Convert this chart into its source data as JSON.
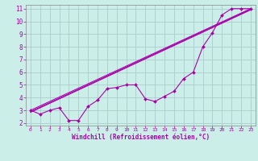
{
  "title": "",
  "xlabel": "Windchill (Refroidissement éolien,°C)",
  "bg_color": "#cceee8",
  "grid_color": "#aacccc",
  "line_color": "#aa00aa",
  "xlim": [
    -0.5,
    23.5
  ],
  "ylim": [
    1.8,
    11.3
  ],
  "xticks": [
    0,
    1,
    2,
    3,
    4,
    5,
    6,
    7,
    8,
    9,
    10,
    11,
    12,
    13,
    14,
    15,
    16,
    17,
    18,
    19,
    20,
    21,
    22,
    23
  ],
  "yticks": [
    2,
    3,
    4,
    5,
    6,
    7,
    8,
    9,
    10,
    11
  ],
  "line1_x": [
    0,
    1,
    2,
    3,
    4,
    5,
    6,
    7,
    8,
    9,
    10,
    11,
    12,
    13,
    14,
    15,
    16,
    17,
    18,
    19,
    20,
    21,
    22,
    23
  ],
  "line1_y": [
    3.0,
    2.7,
    3.0,
    3.2,
    2.2,
    2.2,
    3.3,
    3.8,
    4.7,
    4.8,
    5.0,
    5.0,
    3.9,
    3.7,
    4.1,
    4.5,
    5.5,
    6.0,
    8.0,
    9.1,
    10.5,
    11.0,
    11.0,
    11.0
  ],
  "line2_x": [
    0,
    23
  ],
  "line2_y": [
    3.0,
    11.0
  ],
  "line3_x": [
    0,
    23
  ],
  "line3_y": [
    2.9,
    10.95
  ],
  "line4_x": [
    0,
    23
  ],
  "line4_y": [
    2.85,
    10.9
  ]
}
